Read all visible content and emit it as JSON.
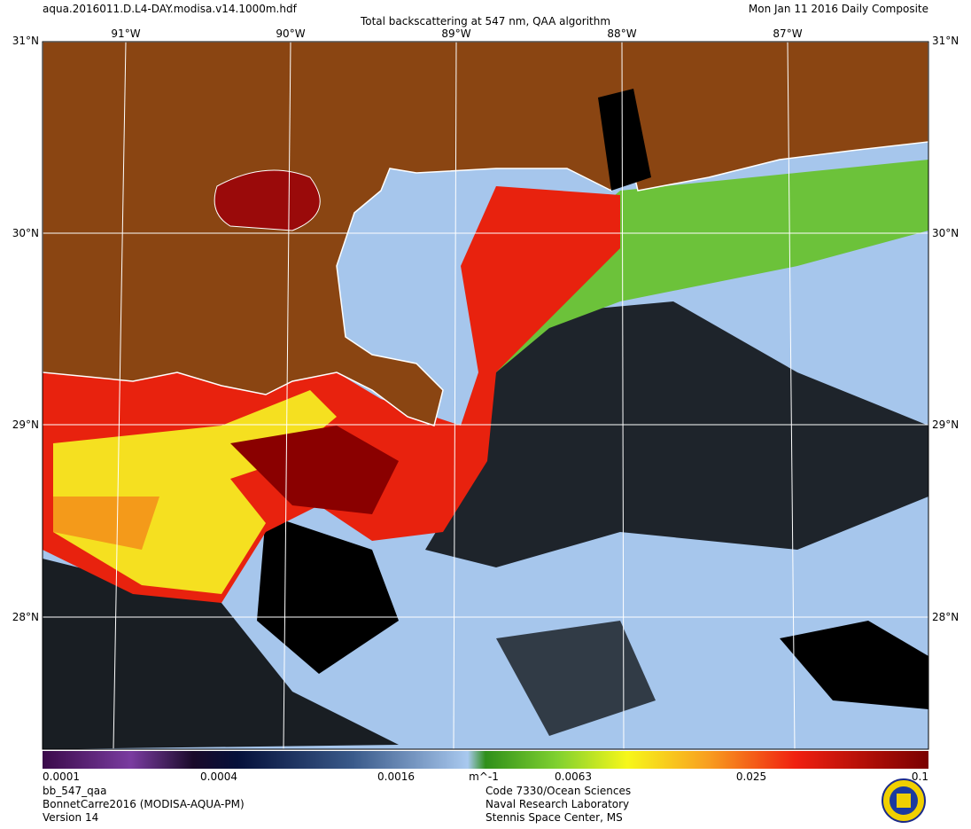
{
  "header": {
    "filename": "aqua.2016011.D.L4-DAY.modisa.v14.1000m.hdf",
    "title": "Total backscattering at 547 nm, QAA algorithm",
    "date": "Mon Jan 11 2016 Daily Composite"
  },
  "map": {
    "lat_labels": [
      "31°N",
      "30°N",
      "29°N",
      "28°N"
    ],
    "lon_labels": [
      "91°W",
      "90°W",
      "89°W",
      "88°W",
      "87°W"
    ]
  },
  "colorbar": {
    "tick_labels": [
      "0.0001",
      "0.0004",
      "0.0016",
      "0.0063",
      "0.025",
      "0.1"
    ],
    "unit": "m^-1"
  },
  "footer": {
    "left": [
      "bb_547_qaa",
      "BonnetCarre2016 (MODISA-AQUA-PM)",
      "Version 14"
    ],
    "center": [
      "Code 7330/Ocean Sciences",
      "Naval Research Laboratory",
      "Stennis Space Center, MS"
    ]
  }
}
